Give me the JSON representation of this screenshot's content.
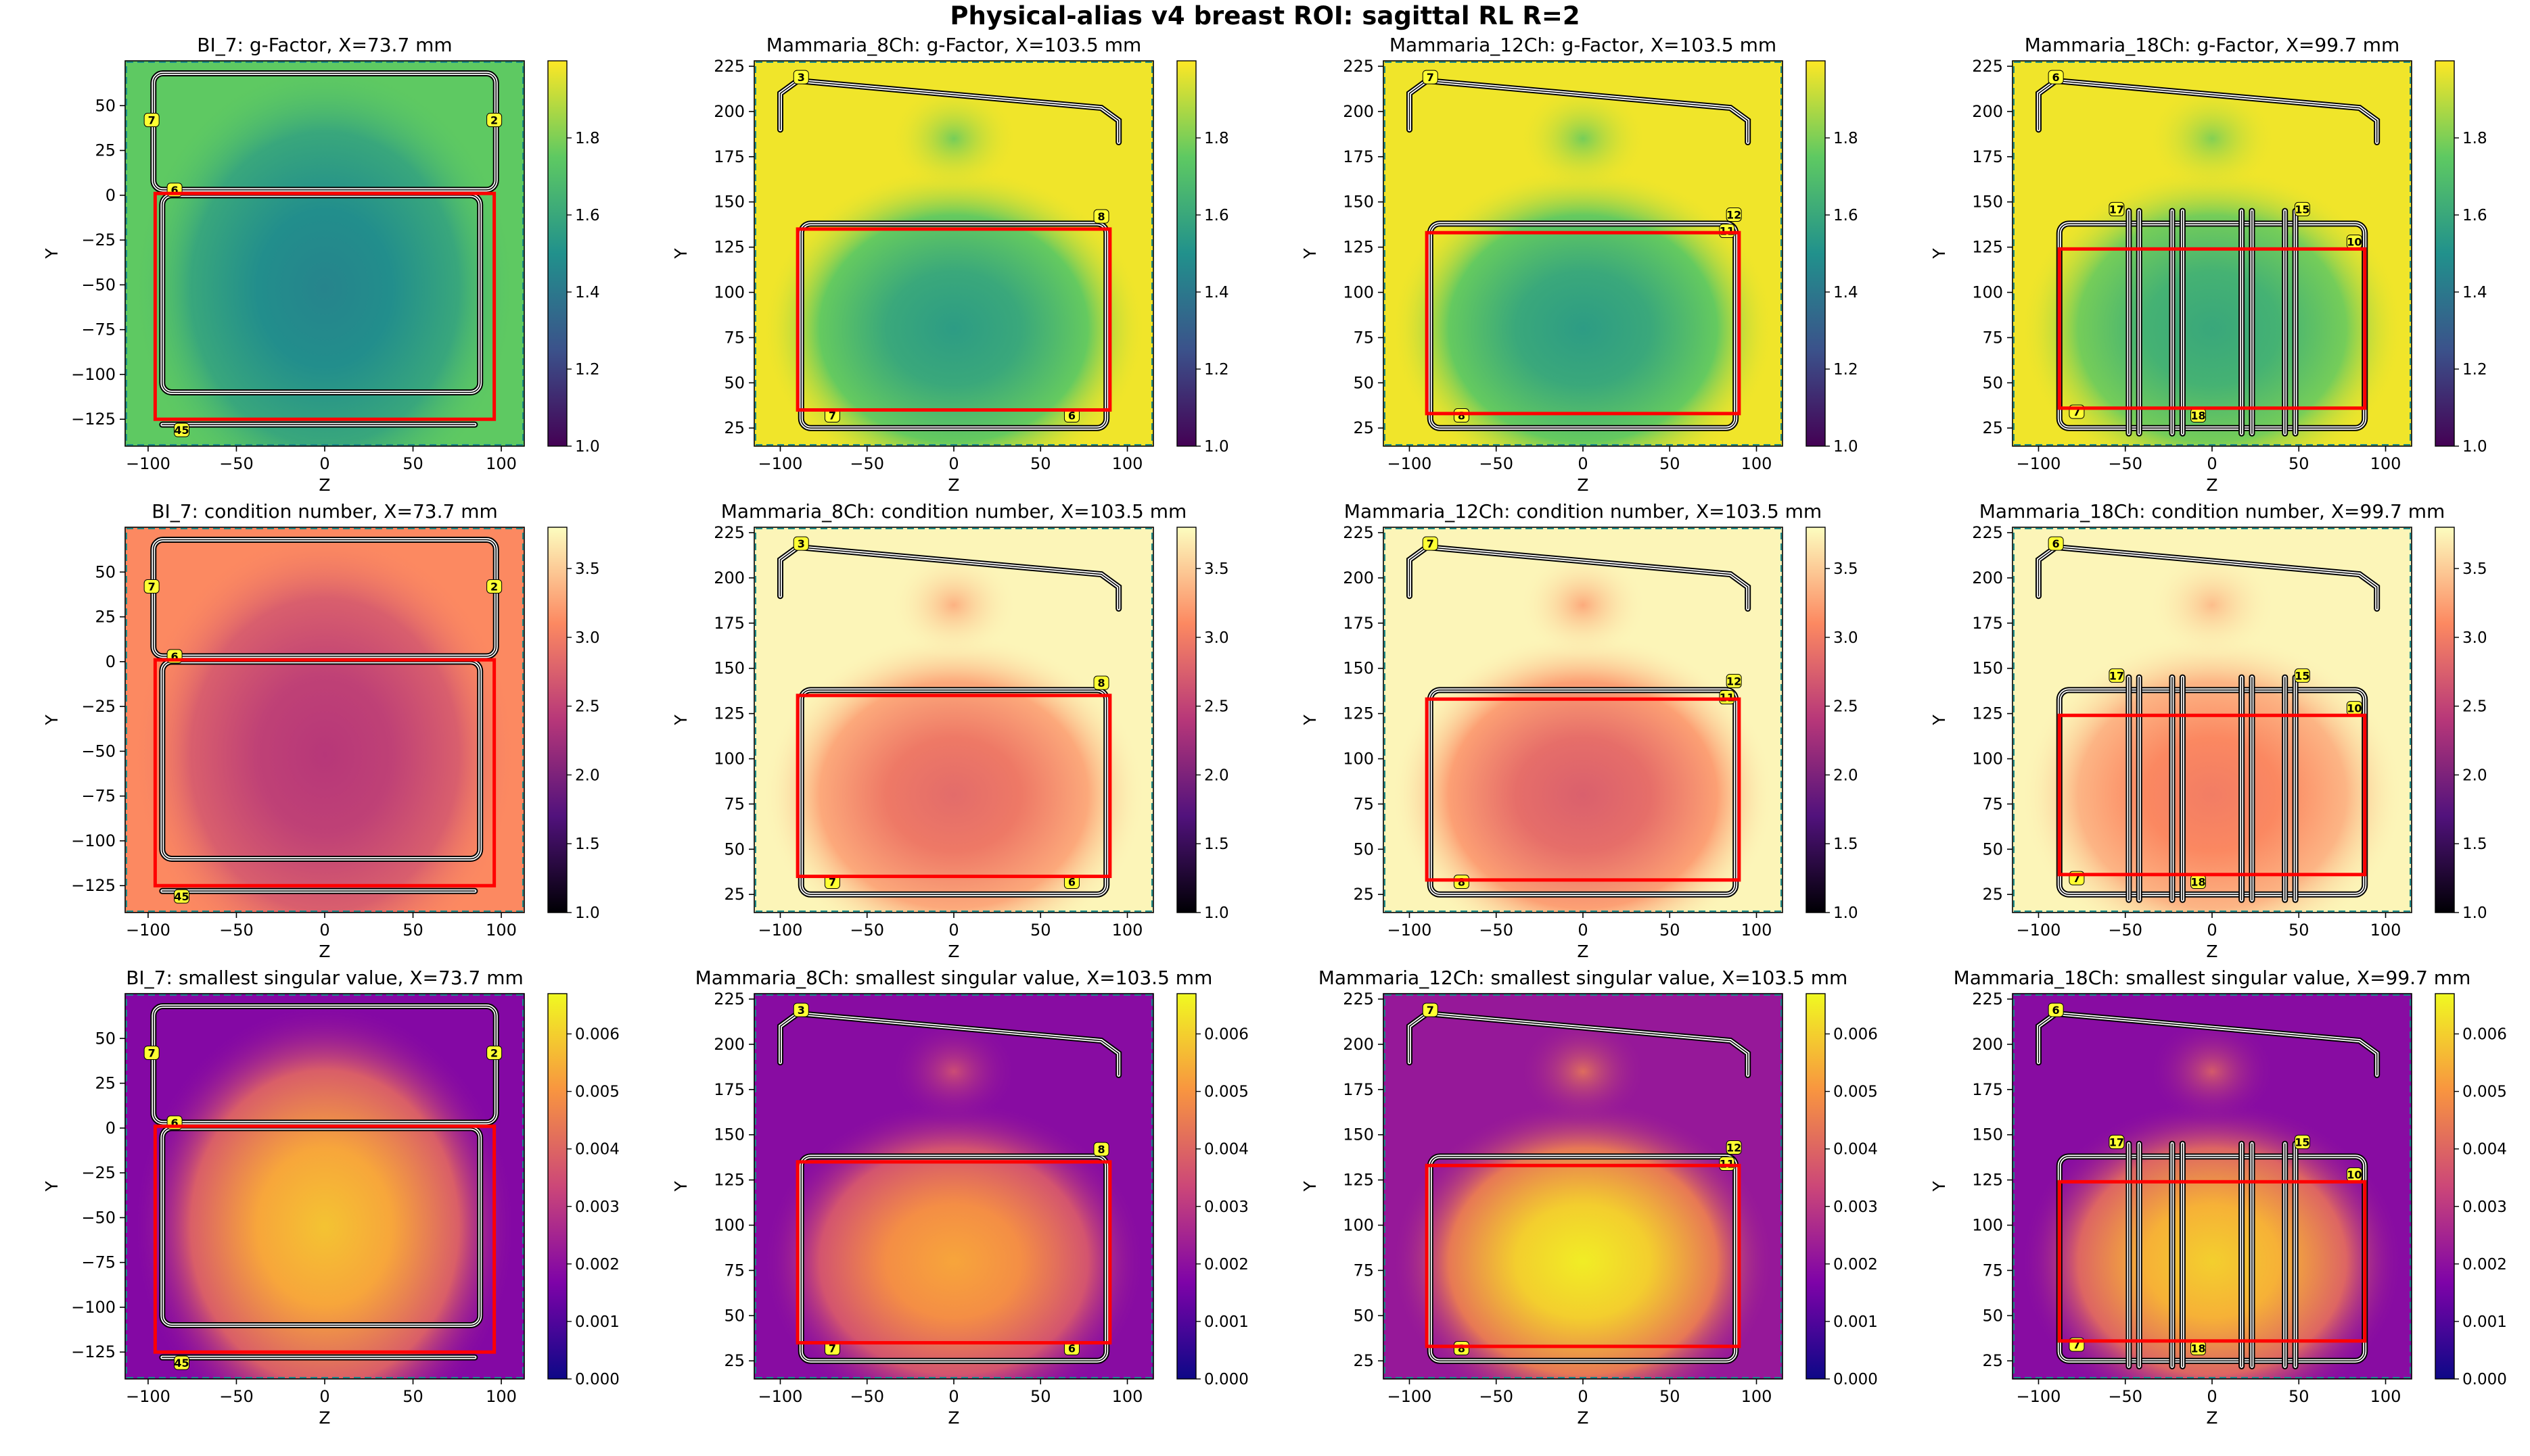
{
  "title": "Physical-alias v4 breast ROI: sagittal RL R=2",
  "chart_data": [
    {
      "type": "heatmap",
      "coil": "BI_7",
      "title": "BI_7: g-Factor, X=73.7 mm",
      "xlabel": "Z",
      "ylabel": "Y",
      "xlim": [
        -113,
        113
      ],
      "ylim": [
        -140,
        75
      ],
      "xticks": [
        -100,
        -50,
        0,
        50,
        100
      ],
      "yticks": [
        -125,
        -100,
        -75,
        -50,
        -25,
        0,
        25,
        50
      ],
      "cmap": "viridis",
      "clim": [
        1.0,
        2.0
      ],
      "cbar_ticks": [
        1.0,
        1.2,
        1.4,
        1.6,
        1.8
      ],
      "roi": {
        "z": [
          -96,
          96
        ],
        "y": [
          -125,
          1
        ]
      },
      "hotspot": {
        "z": 0,
        "y": -52,
        "value": 1.45
      },
      "background": 1.75,
      "channel_labels": [
        "7",
        "2",
        "6",
        "45"
      ]
    },
    {
      "type": "heatmap",
      "coil": "Mammaria_8Ch",
      "title": "Mammaria_8Ch: g-Factor, X=103.5 mm",
      "xlabel": "Z",
      "ylabel": "Y",
      "xlim": [
        -115,
        115
      ],
      "ylim": [
        15,
        228
      ],
      "xticks": [
        -100,
        -50,
        0,
        50,
        100
      ],
      "yticks": [
        25,
        50,
        75,
        100,
        125,
        150,
        175,
        200,
        225
      ],
      "cmap": "viridis",
      "clim": [
        1.0,
        2.0
      ],
      "cbar_ticks": [
        1.0,
        1.2,
        1.4,
        1.6,
        1.8
      ],
      "roi": {
        "z": [
          -90,
          90
        ],
        "y": [
          35,
          135
        ]
      },
      "hotspot": {
        "z": 0,
        "y": 80,
        "value": 1.55
      },
      "background": 1.98,
      "channel_labels": [
        "3",
        "8",
        "7",
        "6"
      ]
    },
    {
      "type": "heatmap",
      "coil": "Mammaria_12Ch",
      "title": "Mammaria_12Ch: g-Factor, X=103.5 mm",
      "xlabel": "Z",
      "ylabel": "Y",
      "xlim": [
        -115,
        115
      ],
      "ylim": [
        15,
        228
      ],
      "xticks": [
        -100,
        -50,
        0,
        50,
        100
      ],
      "yticks": [
        25,
        50,
        75,
        100,
        125,
        150,
        175,
        200,
        225
      ],
      "cmap": "viridis",
      "clim": [
        1.0,
        2.0
      ],
      "cbar_ticks": [
        1.0,
        1.2,
        1.4,
        1.6,
        1.8
      ],
      "roi": {
        "z": [
          -90,
          90
        ],
        "y": [
          33,
          133
        ]
      },
      "hotspot": {
        "z": 0,
        "y": 80,
        "value": 1.55
      },
      "background": 1.98,
      "channel_labels": [
        "7",
        "12",
        "11",
        "8"
      ]
    },
    {
      "type": "heatmap",
      "coil": "Mammaria_18Ch",
      "title": "Mammaria_18Ch: g-Factor, X=99.7 mm",
      "xlabel": "Z",
      "ylabel": "Y",
      "xlim": [
        -115,
        115
      ],
      "ylim": [
        15,
        228
      ],
      "xticks": [
        -100,
        -50,
        0,
        50,
        100
      ],
      "yticks": [
        25,
        50,
        75,
        100,
        125,
        150,
        175,
        200,
        225
      ],
      "cmap": "viridis",
      "clim": [
        1.0,
        2.0
      ],
      "cbar_ticks": [
        1.0,
        1.2,
        1.4,
        1.6,
        1.8
      ],
      "roi": {
        "z": [
          -88,
          88
        ],
        "y": [
          36,
          124
        ]
      },
      "hotspot": {
        "z": 0,
        "y": 80,
        "value": 1.6
      },
      "background": 1.98,
      "channel_labels": [
        "6",
        "17",
        "15",
        "10",
        "7",
        "18"
      ]
    },
    {
      "type": "heatmap",
      "coil": "BI_7",
      "title": "BI_7: condition number, X=73.7 mm",
      "xlabel": "Z",
      "ylabel": "Y",
      "xlim": [
        -113,
        113
      ],
      "ylim": [
        -140,
        75
      ],
      "xticks": [
        -100,
        -50,
        0,
        50,
        100
      ],
      "yticks": [
        -125,
        -100,
        -75,
        -50,
        -25,
        0,
        25,
        50
      ],
      "cmap": "magma",
      "clim": [
        1.0,
        3.8
      ],
      "cbar_ticks": [
        1.0,
        1.5,
        2.0,
        2.5,
        3.0,
        3.5
      ],
      "roi": {
        "z": [
          -96,
          96
        ],
        "y": [
          -125,
          1
        ]
      },
      "hotspot": {
        "z": 0,
        "y": -52,
        "value": 2.4
      },
      "background": 3.1,
      "channel_labels": [
        "7",
        "2",
        "6",
        "45"
      ]
    },
    {
      "type": "heatmap",
      "coil": "Mammaria_8Ch",
      "title": "Mammaria_8Ch: condition number, X=103.5 mm",
      "xlabel": "Z",
      "ylabel": "Y",
      "xlim": [
        -115,
        115
      ],
      "ylim": [
        15,
        228
      ],
      "xticks": [
        -100,
        -50,
        0,
        50,
        100
      ],
      "yticks": [
        25,
        50,
        75,
        100,
        125,
        150,
        175,
        200,
        225
      ],
      "cmap": "magma",
      "clim": [
        1.0,
        3.8
      ],
      "cbar_ticks": [
        1.0,
        1.5,
        2.0,
        2.5,
        3.0,
        3.5
      ],
      "roi": {
        "z": [
          -90,
          90
        ],
        "y": [
          35,
          135
        ]
      },
      "hotspot": {
        "z": 0,
        "y": 80,
        "value": 2.85
      },
      "background": 3.75,
      "channel_labels": [
        "3",
        "8",
        "7",
        "6"
      ]
    },
    {
      "type": "heatmap",
      "coil": "Mammaria_12Ch",
      "title": "Mammaria_12Ch: condition number, X=103.5 mm",
      "xlabel": "Z",
      "ylabel": "Y",
      "xlim": [
        -115,
        115
      ],
      "ylim": [
        15,
        228
      ],
      "xticks": [
        -100,
        -50,
        0,
        50,
        100
      ],
      "yticks": [
        25,
        50,
        75,
        100,
        125,
        150,
        175,
        200,
        225
      ],
      "cmap": "magma",
      "clim": [
        1.0,
        3.8
      ],
      "cbar_ticks": [
        1.0,
        1.5,
        2.0,
        2.5,
        3.0,
        3.5
      ],
      "roi": {
        "z": [
          -90,
          90
        ],
        "y": [
          33,
          133
        ]
      },
      "hotspot": {
        "z": 0,
        "y": 80,
        "value": 2.75
      },
      "background": 3.75,
      "channel_labels": [
        "7",
        "12",
        "11",
        "8"
      ]
    },
    {
      "type": "heatmap",
      "coil": "Mammaria_18Ch",
      "title": "Mammaria_18Ch: condition number, X=99.7 mm",
      "xlabel": "Z",
      "ylabel": "Y",
      "xlim": [
        -115,
        115
      ],
      "ylim": [
        15,
        228
      ],
      "xticks": [
        -100,
        -50,
        0,
        50,
        100
      ],
      "yticks": [
        25,
        50,
        75,
        100,
        125,
        150,
        175,
        200,
        225
      ],
      "cmap": "magma",
      "clim": [
        1.0,
        3.8
      ],
      "cbar_ticks": [
        1.0,
        1.5,
        2.0,
        2.5,
        3.0,
        3.5
      ],
      "roi": {
        "z": [
          -88,
          88
        ],
        "y": [
          36,
          124
        ]
      },
      "hotspot": {
        "z": 0,
        "y": 80,
        "value": 3.0
      },
      "background": 3.75,
      "channel_labels": [
        "6",
        "17",
        "15",
        "10",
        "7",
        "18"
      ]
    },
    {
      "type": "heatmap",
      "coil": "BI_7",
      "title": "BI_7: smallest singular value, X=73.7 mm",
      "xlabel": "Z",
      "ylabel": "Y",
      "xlim": [
        -113,
        113
      ],
      "ylim": [
        -140,
        75
      ],
      "xticks": [
        -100,
        -50,
        0,
        50,
        100
      ],
      "yticks": [
        -125,
        -100,
        -75,
        -50,
        -25,
        0,
        25,
        50
      ],
      "cmap": "plasma",
      "clim": [
        0.0,
        0.0067
      ],
      "cbar_ticks": [
        0.0,
        0.001,
        0.002,
        0.003,
        0.004,
        0.005,
        0.006
      ],
      "roi": {
        "z": [
          -96,
          96
        ],
        "y": [
          -125,
          1
        ]
      },
      "hotspot": {
        "z": 0,
        "y": -55,
        "value": 0.0058
      },
      "background": 0.0018,
      "channel_labels": [
        "7",
        "2",
        "6",
        "45"
      ]
    },
    {
      "type": "heatmap",
      "coil": "Mammaria_8Ch",
      "title": "Mammaria_8Ch: smallest singular value, X=103.5 mm",
      "xlabel": "Z",
      "ylabel": "Y",
      "xlim": [
        -115,
        115
      ],
      "ylim": [
        15,
        228
      ],
      "xticks": [
        -100,
        -50,
        0,
        50,
        100
      ],
      "yticks": [
        25,
        50,
        75,
        100,
        125,
        150,
        175,
        200,
        225
      ],
      "cmap": "plasma",
      "clim": [
        0.0,
        0.0067
      ],
      "cbar_ticks": [
        0.0,
        0.001,
        0.002,
        0.003,
        0.004,
        0.005,
        0.006
      ],
      "roi": {
        "z": [
          -90,
          90
        ],
        "y": [
          35,
          135
        ]
      },
      "hotspot": {
        "z": 0,
        "y": 80,
        "value": 0.0053
      },
      "background": 0.0019,
      "channel_labels": [
        "3",
        "8",
        "7",
        "6"
      ]
    },
    {
      "type": "heatmap",
      "coil": "Mammaria_12Ch",
      "title": "Mammaria_12Ch: smallest singular value, X=103.5 mm",
      "xlabel": "Z",
      "ylabel": "Y",
      "xlim": [
        -115,
        115
      ],
      "ylim": [
        15,
        228
      ],
      "xticks": [
        -100,
        -50,
        0,
        50,
        100
      ],
      "yticks": [
        25,
        50,
        75,
        100,
        125,
        150,
        175,
        200,
        225
      ],
      "cmap": "plasma",
      "clim": [
        0.0,
        0.0067
      ],
      "cbar_ticks": [
        0.0,
        0.001,
        0.002,
        0.003,
        0.004,
        0.005,
        0.006
      ],
      "roi": {
        "z": [
          -90,
          90
        ],
        "y": [
          33,
          133
        ]
      },
      "hotspot": {
        "z": 0,
        "y": 80,
        "value": 0.0065
      },
      "background": 0.0022,
      "channel_labels": [
        "7",
        "12",
        "11",
        "8"
      ]
    },
    {
      "type": "heatmap",
      "coil": "Mammaria_18Ch",
      "title": "Mammaria_18Ch: smallest singular value, X=99.7 mm",
      "xlabel": "Z",
      "ylabel": "Y",
      "xlim": [
        -115,
        115
      ],
      "ylim": [
        15,
        228
      ],
      "xticks": [
        -100,
        -50,
        0,
        50,
        100
      ],
      "yticks": [
        25,
        50,
        75,
        100,
        125,
        150,
        175,
        200,
        225
      ],
      "cmap": "plasma",
      "clim": [
        0.0,
        0.0067
      ],
      "cbar_ticks": [
        0.0,
        0.001,
        0.002,
        0.003,
        0.004,
        0.005,
        0.006
      ],
      "roi": {
        "z": [
          -88,
          88
        ],
        "y": [
          36,
          124
        ]
      },
      "hotspot": {
        "z": 0,
        "y": 80,
        "value": 0.006
      },
      "background": 0.0019,
      "channel_labels": [
        "6",
        "17",
        "15",
        "10",
        "7",
        "18"
      ]
    }
  ]
}
